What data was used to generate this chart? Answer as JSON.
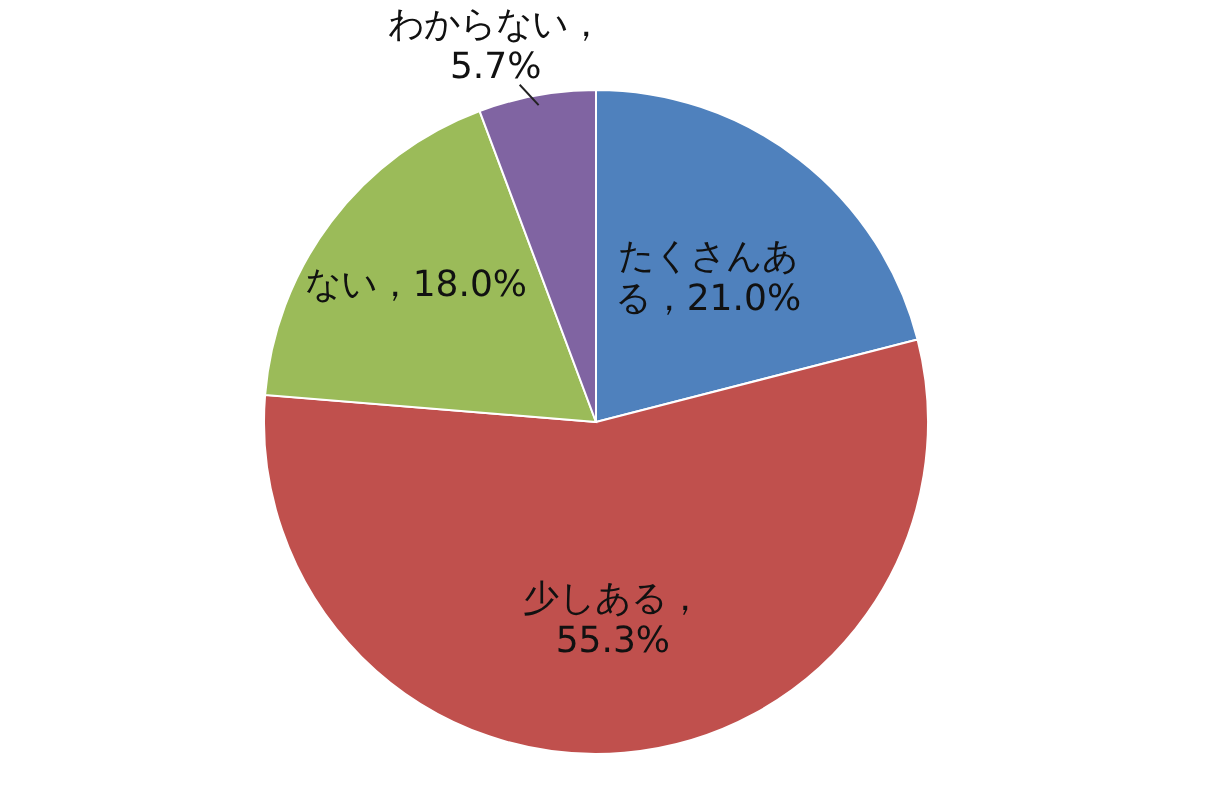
{
  "chart_data": {
    "type": "pie",
    "categories": [
      "たくさんある",
      "少しある",
      "ない",
      "わからない"
    ],
    "values": [
      21.0,
      55.3,
      18.0,
      5.7
    ],
    "colors": [
      "#4f81bd",
      "#c0504d",
      "#9bbb59",
      "#8064a2"
    ],
    "value_labels": [
      "，21.0%",
      "，55.3%",
      "，18.0%",
      "，5.7%"
    ]
  }
}
